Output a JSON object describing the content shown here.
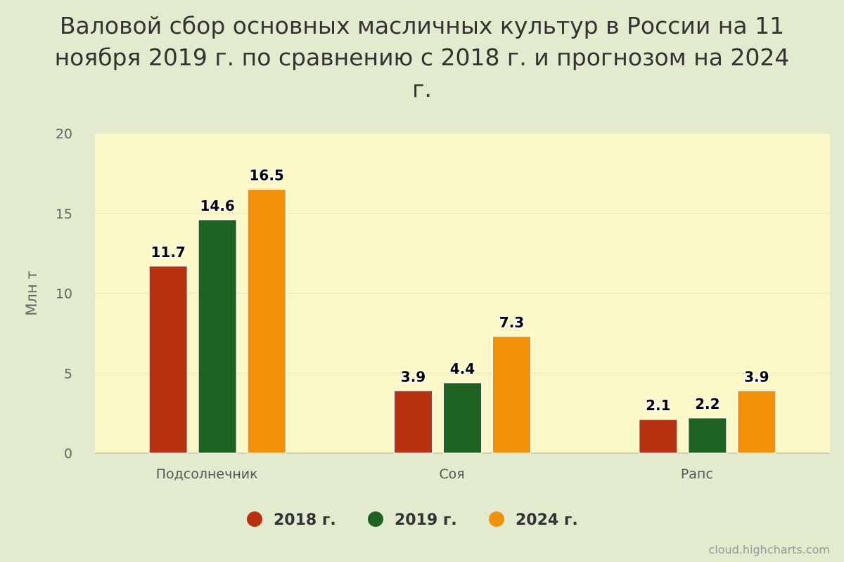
{
  "chart_data": {
    "type": "bar",
    "title": "Валовой сбор основных масличных культур в России на 11 ноября 2019 г. по сравнению с 2018 г. и прогнозом на 2024 г.",
    "ylabel": "Млн т",
    "xlabel": "",
    "ylim": [
      0,
      20
    ],
    "yticks": [
      0,
      5,
      10,
      15,
      20
    ],
    "categories": [
      "Подсолнечник",
      "Соя",
      "Рапс"
    ],
    "series": [
      {
        "name": "2018 г.",
        "color": "#b83111",
        "values": [
          11.7,
          3.9,
          2.1
        ]
      },
      {
        "name": "2019 г.",
        "color": "#1e6222",
        "values": [
          14.6,
          4.4,
          2.2
        ]
      },
      {
        "name": "2024 г.",
        "color": "#f39009",
        "values": [
          16.5,
          7.3,
          3.9
        ]
      }
    ],
    "legend_position": "bottom",
    "grid": true,
    "plot_background": "#fdf8c8",
    "page_background": "#e2ebcd"
  },
  "credit": "cloud.highcharts.com"
}
